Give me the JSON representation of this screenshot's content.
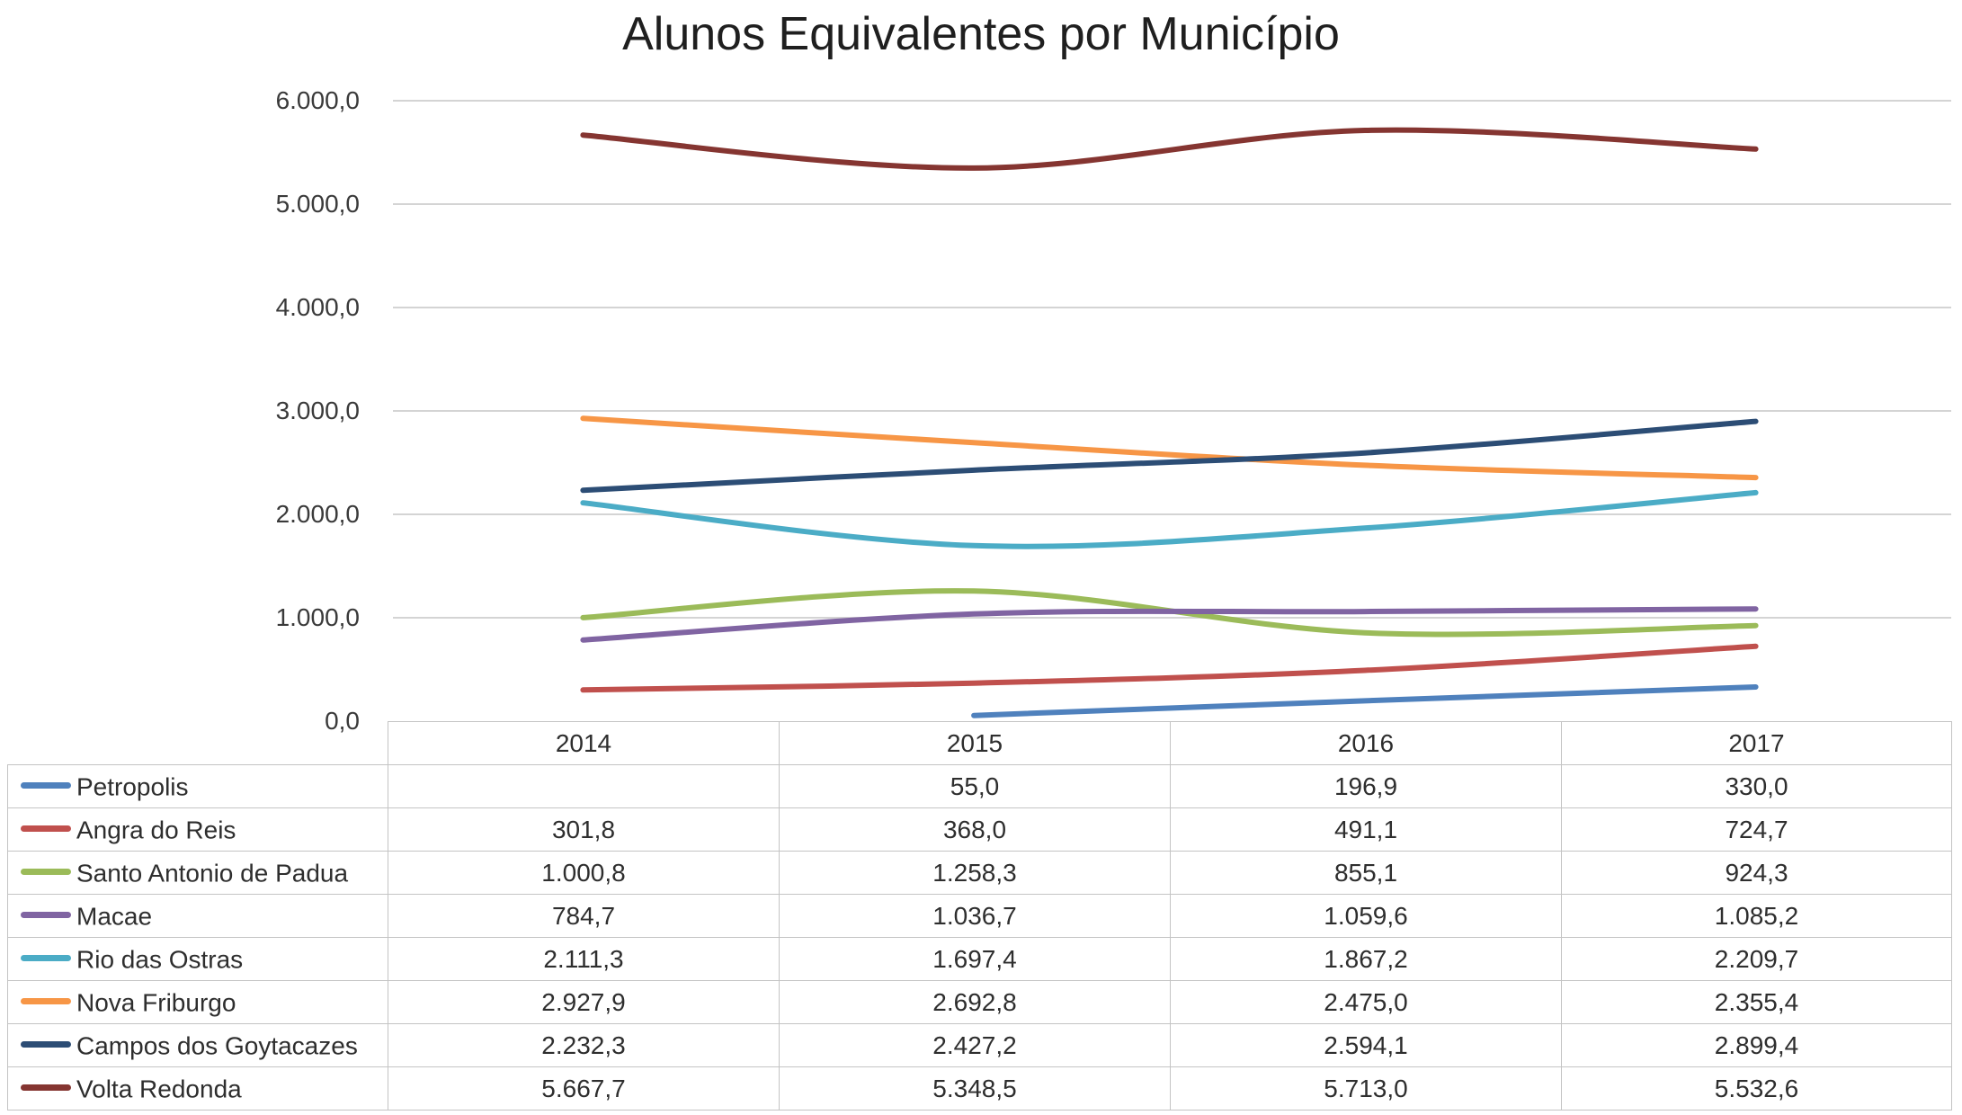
{
  "chart_data": {
    "type": "line",
    "title": "Alunos Equivalentes por Município",
    "categories": [
      "2014",
      "2015",
      "2016",
      "2017"
    ],
    "xlabel": "",
    "ylabel": "",
    "ylim": [
      0,
      6000
    ],
    "y_tick_labels": [
      "6.000,0",
      "5.000,0",
      "4.000,0",
      "3.000,0",
      "2.000,0",
      "1.000,0",
      "0,0"
    ],
    "grid": true,
    "smooth_lines": true,
    "legend_position": "table-left",
    "gridline_color": "#d4d4d4",
    "table_border_color": "#c4c4c4",
    "series": [
      {
        "name": "Petropolis",
        "color": "#4F81BD",
        "values": [
          null,
          55.0,
          196.9,
          330.0
        ],
        "display": [
          "",
          "55,0",
          "196,9",
          "330,0"
        ]
      },
      {
        "name": "Angra do Reis",
        "color": "#C0504D",
        "values": [
          301.8,
          368.0,
          491.1,
          724.7
        ],
        "display": [
          "301,8",
          "368,0",
          "491,1",
          "724,7"
        ]
      },
      {
        "name": "Santo Antonio de Padua",
        "color": "#9BBB59",
        "values": [
          1000.8,
          1258.3,
          855.1,
          924.3
        ],
        "display": [
          "1.000,8",
          "1.258,3",
          "855,1",
          "924,3"
        ]
      },
      {
        "name": "Macae",
        "color": "#8064A2",
        "values": [
          784.7,
          1036.7,
          1059.6,
          1085.2
        ],
        "display": [
          "784,7",
          "1.036,7",
          "1.059,6",
          "1.085,2"
        ]
      },
      {
        "name": "Rio das Ostras",
        "color": "#4BACC6",
        "values": [
          2111.3,
          1697.4,
          1867.2,
          2209.7
        ],
        "display": [
          "2.111,3",
          "1.697,4",
          "1.867,2",
          "2.209,7"
        ]
      },
      {
        "name": "Nova Friburgo",
        "color": "#F79646",
        "values": [
          2927.9,
          2692.8,
          2475.0,
          2355.4
        ],
        "display": [
          "2.927,9",
          "2.692,8",
          "2.475,0",
          "2.355,4"
        ]
      },
      {
        "name": "Campos dos Goytacazes",
        "color": "#2C4D75",
        "values": [
          2232.3,
          2427.2,
          2594.1,
          2899.4
        ],
        "display": [
          "2.232,3",
          "2.427,2",
          "2.594,1",
          "2.899,4"
        ]
      },
      {
        "name": "Volta Redonda",
        "color": "#853531",
        "values": [
          5667.7,
          5348.5,
          5713.0,
          5532.6
        ],
        "display": [
          "5.667,7",
          "5.348,5",
          "5.713,0",
          "5.532,6"
        ]
      }
    ]
  }
}
